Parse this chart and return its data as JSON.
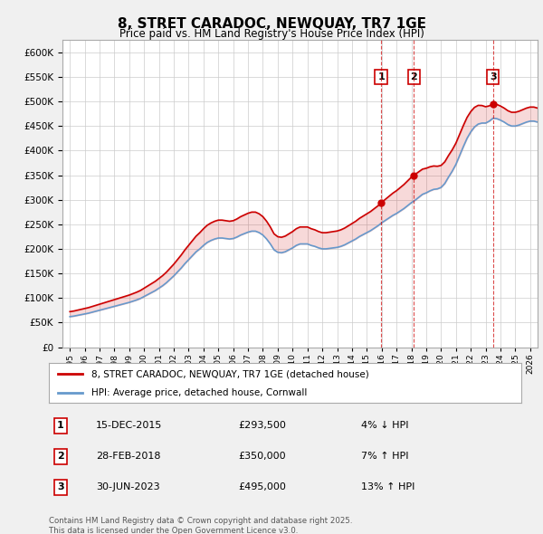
{
  "title": "8, STRET CARADOC, NEWQUAY, TR7 1GE",
  "subtitle": "Price paid vs. HM Land Registry's House Price Index (HPI)",
  "ylim": [
    0,
    625000
  ],
  "yticks": [
    0,
    50000,
    100000,
    150000,
    200000,
    250000,
    300000,
    350000,
    400000,
    450000,
    500000,
    550000,
    600000
  ],
  "xlim_start": 1994.5,
  "xlim_end": 2026.5,
  "bg_color": "#f0f0f0",
  "plot_bg_color": "#ffffff",
  "grid_color": "#cccccc",
  "hpi_color": "#6699cc",
  "price_color": "#cc0000",
  "legend_label_price": "8, STRET CARADOC, NEWQUAY, TR7 1GE (detached house)",
  "legend_label_hpi": "HPI: Average price, detached house, Cornwall",
  "transactions": [
    {
      "num": 1,
      "date": "15-DEC-2015",
      "price": 293500,
      "pct": "4%",
      "dir": "↓",
      "year": 2015.96
    },
    {
      "num": 2,
      "date": "28-FEB-2018",
      "price": 350000,
      "pct": "7%",
      "dir": "↑",
      "year": 2018.16
    },
    {
      "num": 3,
      "date": "30-JUN-2023",
      "price": 495000,
      "pct": "13%",
      "dir": "↑",
      "year": 2023.5
    }
  ],
  "footer_line1": "Contains HM Land Registry data © Crown copyright and database right 2025.",
  "footer_line2": "This data is licensed under the Open Government Licence v3.0.",
  "hpi_values": [
    62000,
    63000,
    64500,
    66000,
    67500,
    69000,
    71000,
    73000,
    75000,
    77000,
    79000,
    81000,
    83000,
    85000,
    87000,
    89000,
    91000,
    93500,
    96000,
    99000,
    103000,
    107000,
    111000,
    115000,
    120000,
    125000,
    131000,
    138000,
    145000,
    153000,
    161000,
    170000,
    178000,
    186000,
    194000,
    200000,
    207000,
    213000,
    217000,
    220000,
    222000,
    222000,
    221000,
    220000,
    221000,
    224000,
    228000,
    231000,
    234000,
    236000,
    236000,
    233000,
    228000,
    220000,
    210000,
    198000,
    193000,
    192000,
    194000,
    198000,
    202000,
    207000,
    210000,
    210000,
    210000,
    207000,
    205000,
    202000,
    200000,
    200000,
    201000,
    202000,
    203000,
    205000,
    208000,
    212000,
    216000,
    220000,
    225000,
    229000,
    233000,
    237000,
    242000,
    247000,
    253000,
    258000,
    263000,
    268000,
    272000,
    277000,
    282000,
    288000,
    294000,
    299000,
    305000,
    311000,
    314000,
    318000,
    321000,
    322000,
    325000,
    333000,
    346000,
    358000,
    372000,
    390000,
    408000,
    425000,
    438000,
    448000,
    454000,
    456000,
    456000,
    460000,
    466000,
    465000,
    462000,
    458000,
    453000,
    450000,
    450000,
    452000,
    455000,
    458000,
    460000,
    460000,
    458000,
    455000,
    452000
  ]
}
